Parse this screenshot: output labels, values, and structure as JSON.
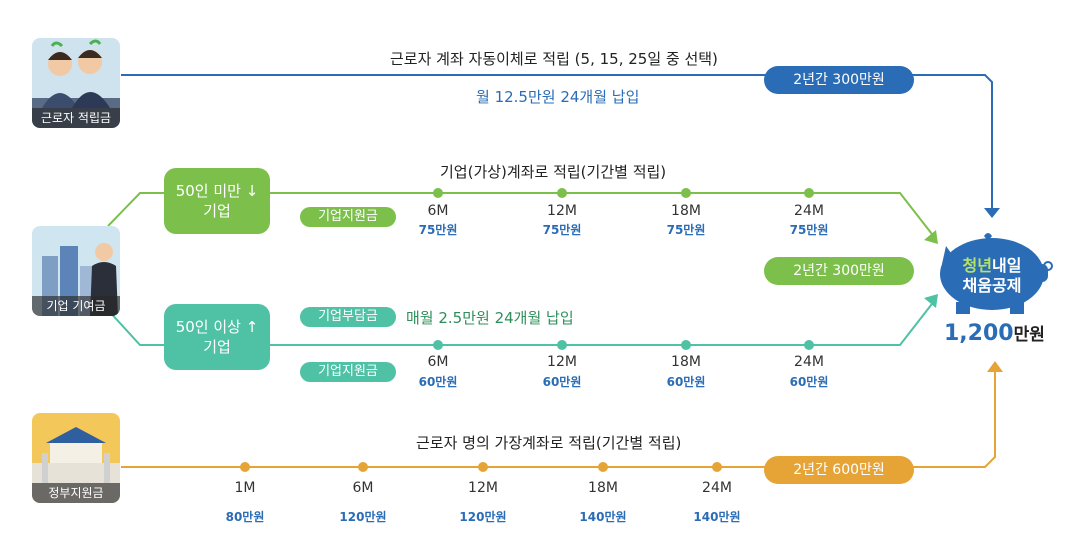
{
  "colors": {
    "blue": "#2a6cb5",
    "green": "#7cc04b",
    "teal": "#4fc1a4",
    "orange": "#e6a336",
    "navy": "#2a6cb5"
  },
  "worker": {
    "caption": "근로자 적립금",
    "route_label": "근로자 계좌 자동이체로 적립 (5, 15, 25일 중 선택)",
    "monthly": "월 12.5만원 24개월 납입",
    "total": "2년간 300만원"
  },
  "company": {
    "caption": "기업 기여금",
    "route_label": "기업(가상)계좌로 적립(기간별 적립)",
    "small": {
      "line1": "50인 미만",
      "arrow": "↓",
      "line2": "기업"
    },
    "large": {
      "line1": "50인 이상",
      "arrow": "↑",
      "line2": "기업"
    },
    "support_tag": "기업지원금",
    "burden_tag": "기업부담금",
    "burden_text": "매월 2.5만원 24개월 납입",
    "total": "2년간 300만원",
    "small_milestones": [
      {
        "m": "6M",
        "amt": "75만원"
      },
      {
        "m": "12M",
        "amt": "75만원"
      },
      {
        "m": "18M",
        "amt": "75만원"
      },
      {
        "m": "24M",
        "amt": "75만원"
      }
    ],
    "large_milestones": [
      {
        "m": "6M",
        "amt": "60만원"
      },
      {
        "m": "12M",
        "amt": "60만원"
      },
      {
        "m": "18M",
        "amt": "60만원"
      },
      {
        "m": "24M",
        "amt": "60만원"
      }
    ]
  },
  "gov": {
    "caption": "정부지원금",
    "route_label": "근로자 명의 가장계좌로 적립(기간별 적립)",
    "total": "2년간 600만원",
    "milestones": [
      {
        "m": "1M",
        "amt": "80만원"
      },
      {
        "m": "6M",
        "amt": "120만원"
      },
      {
        "m": "12M",
        "amt": "120만원"
      },
      {
        "m": "18M",
        "amt": "140만원"
      },
      {
        "m": "24M",
        "amt": "140만원"
      }
    ]
  },
  "piggy": {
    "name_green": "청년",
    "name_white": "내일",
    "name_line2": "채움공제",
    "total_num": "1,200",
    "total_unit": "만원"
  }
}
